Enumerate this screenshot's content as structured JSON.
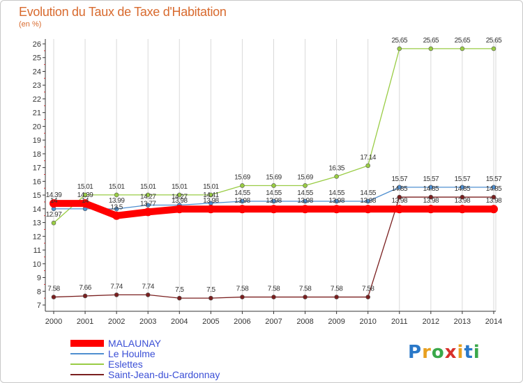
{
  "title": "Evolution du Taux de Taxe d'Habitation",
  "subtitle": "(en %)",
  "logo": "Proxiti",
  "chart_data": {
    "type": "line",
    "title": "Evolution du Taux de Taxe d'Habitation",
    "ylabel": "(en %)",
    "xlabel": "",
    "ylim": [
      7,
      26
    ],
    "x": [
      "2000",
      "2001",
      "2002",
      "2003",
      "2004",
      "2005",
      "2006",
      "2007",
      "2008",
      "2009",
      "2010",
      "2011",
      "2012",
      "2013",
      "2014"
    ],
    "yticks": [
      "7",
      "8",
      "9",
      "10",
      "11",
      "12",
      "13",
      "14",
      "15",
      "16",
      "17",
      "18",
      "19",
      "20",
      "21",
      "22",
      "23",
      "24",
      "25",
      "26"
    ],
    "series": [
      {
        "name": "MALAUNAY",
        "color": "#ff0000",
        "values": [
          14.39,
          14.39,
          13.5,
          13.77,
          13.98,
          13.98,
          13.98,
          13.98,
          13.98,
          13.98,
          13.98,
          13.98,
          13.98,
          13.98,
          13.98
        ]
      },
      {
        "name": "Le Houlme",
        "color": "#4f8fd0",
        "values": [
          14.0,
          14.0,
          13.99,
          14.27,
          14.27,
          14.41,
          14.55,
          14.55,
          14.55,
          14.55,
          14.55,
          15.57,
          15.57,
          15.57,
          15.57
        ]
      },
      {
        "name": "Eslettes",
        "color": "#99cc44",
        "values": [
          12.97,
          15.01,
          15.01,
          15.01,
          15.01,
          15.01,
          15.69,
          15.69,
          15.69,
          16.35,
          17.14,
          25.65,
          25.65,
          25.65,
          25.65
        ]
      },
      {
        "name": "Saint-Jean-du-Cardonnay",
        "color": "#7a1f1f",
        "values": [
          7.58,
          7.66,
          7.74,
          7.74,
          7.5,
          7.5,
          7.58,
          7.58,
          7.58,
          7.58,
          7.58,
          14.85,
          14.85,
          14.85,
          14.85
        ]
      }
    ],
    "labels": [
      [
        "14.39",
        "14.39",
        "13.5",
        "13.77",
        "13.98",
        "13.98",
        "13.98",
        "13.98",
        "13.98",
        "13.98",
        "13.98",
        "13.98",
        "13.98",
        "13.98",
        "13.98"
      ],
      [
        "14",
        "14",
        "13.99",
        "14.27",
        "14.27",
        "14.41",
        "14.55",
        "14.55",
        "14.55",
        "14.55",
        "14.55",
        "15.57",
        "15.57",
        "15.57",
        "15.57"
      ],
      [
        "12.97",
        "15.01",
        "15.01",
        "15.01",
        "15.01",
        "15.01",
        "15.69",
        "15.69",
        "15.69",
        "16.35",
        "17.14",
        "25.65",
        "25.65",
        "25.65",
        "25.65"
      ],
      [
        "7.58",
        "7.66",
        "7.74",
        "7.74",
        "7.5",
        "7.5",
        "7.58",
        "7.58",
        "7.58",
        "7.58",
        "7.58",
        "14.85",
        "14.85",
        "14.85",
        "14.85"
      ]
    ]
  }
}
